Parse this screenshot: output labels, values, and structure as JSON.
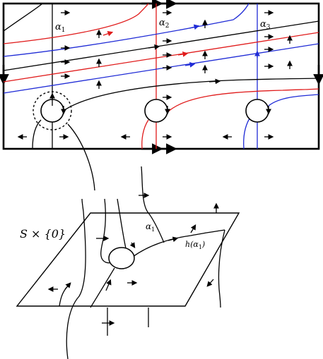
{
  "labels": {
    "alpha1": "α",
    "alpha1_sub": "1",
    "alpha2": "α",
    "alpha2_sub": "2",
    "alpha3": "α",
    "alpha3_sub": "3",
    "alpha1_bottom": "α",
    "alpha1_bottom_sub": "1",
    "h_alpha1": "h(α",
    "h_alpha1_sub": "1",
    "h_alpha1_close": ")",
    "slice": "S × {0}"
  },
  "colors": {
    "red": "#e01b1b",
    "blue": "#1f2bd6",
    "black": "#000000"
  }
}
